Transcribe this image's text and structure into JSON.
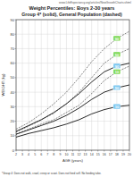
{
  "chart_data": {
    "type": "line",
    "title": "Weight Percentiles: Boys 2-30 years",
    "subtitle": "Group 4* (solid), General Population (dashed)",
    "source": "www.LifeExpectancy.org/articles/NewGrowthCharts.shtml",
    "x_label": "AGE (years)",
    "y_label": "WEIGHT (kg)",
    "footnote": "*Group 4: Does not walk, crawl, creep or scoot. Does not feed self. No feeding tube.",
    "x": [
      2,
      4,
      6,
      8,
      10,
      12,
      14,
      16,
      18,
      20
    ],
    "xlim": [
      2,
      20
    ],
    "xticks": [
      2,
      3,
      4,
      5,
      6,
      7,
      8,
      9,
      10,
      11,
      12,
      13,
      14,
      15,
      16,
      17,
      18,
      19,
      20
    ],
    "ylim": [
      0,
      90
    ],
    "yticks": [
      0,
      10,
      20,
      30,
      40,
      50,
      60,
      70,
      80,
      90
    ],
    "grid": true,
    "series": [
      {
        "name": "90",
        "color": "#333333",
        "line_style": "dashed",
        "values": [
          14.5,
          19,
          25,
          32,
          40,
          50,
          61,
          70,
          77,
          82
        ]
      },
      {
        "name": "50",
        "color": "#333333",
        "line_style": "dashed",
        "values": [
          12.5,
          16.5,
          21,
          25.5,
          32,
          40,
          50,
          60,
          66,
          70
        ]
      },
      {
        "name": "10",
        "color": "#333333",
        "line_style": "dashed",
        "values": [
          11,
          14.5,
          18,
          21,
          26,
          31,
          39,
          48,
          54,
          58
        ]
      },
      {
        "name": "90",
        "color": "#111111",
        "line_style": "solid",
        "values": [
          13,
          17,
          21,
          26,
          32,
          39,
          47,
          54,
          58,
          60
        ]
      },
      {
        "name": "50",
        "color": "#111111",
        "line_style": "solid",
        "values": [
          11,
          14,
          17,
          20,
          24,
          29,
          35,
          40,
          43,
          45
        ]
      },
      {
        "name": "10",
        "color": "#111111",
        "line_style": "solid",
        "values": [
          9,
          11.5,
          13.5,
          15.5,
          18,
          21,
          25,
          28,
          30,
          31
        ]
      }
    ]
  }
}
